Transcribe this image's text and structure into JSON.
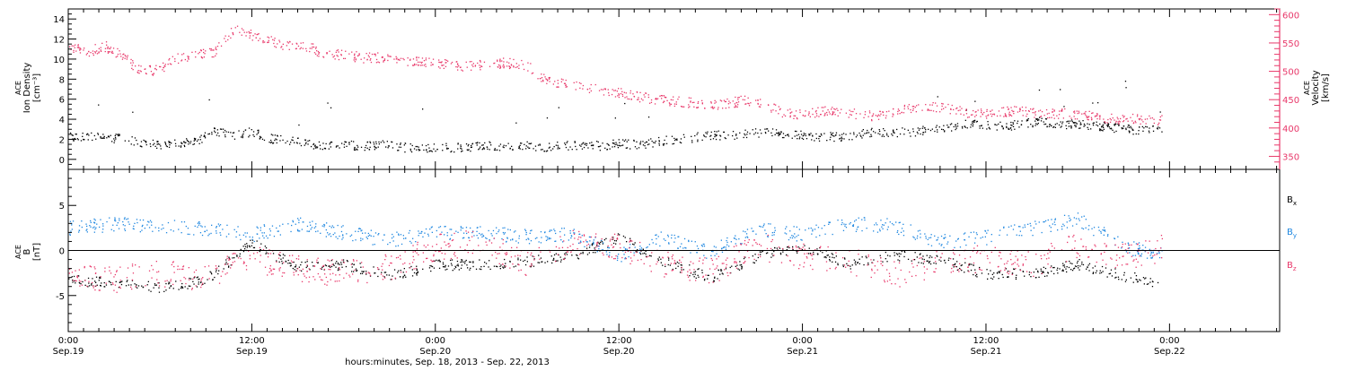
{
  "colors": {
    "black": "#000000",
    "pink": "#e8386a",
    "blue": "#1e87e0"
  },
  "chart_data": [
    {
      "type": "scatter",
      "panel": "top",
      "ylabel_left": [
        "ACE",
        "Ion Density",
        "[cm⁻³]"
      ],
      "ylabel_right": [
        "ACE",
        "Velocity",
        "[km/s]"
      ],
      "y_left_lim": [
        -1,
        15
      ],
      "y_left_ticks": [
        0,
        2,
        4,
        6,
        8,
        10,
        12,
        14
      ],
      "y_right_lim": [
        327,
        610
      ],
      "y_right_ticks": [
        350,
        400,
        450,
        500,
        550,
        600
      ],
      "series": [
        {
          "name": "",
          "axis": "left",
          "color": "#000000",
          "x_days": [
            0,
            0.1,
            0.2,
            0.3,
            0.4,
            0.5,
            0.6,
            0.7,
            0.8,
            0.9,
            1.0,
            1.1,
            1.2,
            1.3,
            1.4,
            1.5,
            1.6,
            1.7,
            1.8,
            1.9,
            2.0,
            2.1,
            2.2,
            2.3,
            2.4,
            2.5,
            2.6,
            2.7,
            2.8,
            2.9,
            3.0,
            3.1,
            3.2,
            3.3,
            3.4,
            3.5,
            3.6,
            3.7,
            3.8,
            3.9,
            4.0,
            4.1,
            4.2,
            4.3,
            4.4,
            4.5,
            4.6,
            4.7,
            4.8,
            4.9,
            5.0,
            5.1,
            5.2,
            5.3,
            5.4,
            5.5,
            5.6,
            5.7,
            5.8,
            5.9,
            5.96
          ],
          "values": [
            2.3,
            2.4,
            2.1,
            2.2,
            1.7,
            1.5,
            1.6,
            1.8,
            2.9,
            2.4,
            2.8,
            2.1,
            1.9,
            1.6,
            1.4,
            1.6,
            1.3,
            1.5,
            1.3,
            1.1,
            1.3,
            1.2,
            1.3,
            1.4,
            1.2,
            1.4,
            1.2,
            1.4,
            1.5,
            1.4,
            1.6,
            1.5,
            1.8,
            2.0,
            2.2,
            2.5,
            2.4,
            2.6,
            2.8,
            2.6,
            2.5,
            2.3,
            2.3,
            2.5,
            2.8,
            2.7,
            2.8,
            3.0,
            3.2,
            3.6,
            3.4,
            3.3,
            3.6,
            3.8,
            3.5,
            3.6,
            3.4,
            3.2,
            3.0,
            3.1,
            3.1
          ],
          "noise": 0.45
        },
        {
          "name": "",
          "axis": "right",
          "color": "#e8386a",
          "x_days": [
            0,
            0.1,
            0.2,
            0.3,
            0.4,
            0.5,
            0.6,
            0.7,
            0.8,
            0.9,
            1.0,
            1.1,
            1.2,
            1.3,
            1.4,
            1.5,
            1.6,
            1.7,
            1.8,
            1.9,
            2.0,
            2.1,
            2.2,
            2.3,
            2.4,
            2.5,
            2.6,
            2.7,
            2.8,
            2.9,
            3.0,
            3.1,
            3.2,
            3.3,
            3.4,
            3.5,
            3.6,
            3.7,
            3.8,
            3.9,
            4.0,
            4.1,
            4.2,
            4.3,
            4.4,
            4.5,
            4.6,
            4.7,
            4.8,
            4.9,
            5.0,
            5.1,
            5.2,
            5.3,
            5.4,
            5.5,
            5.6,
            5.7,
            5.8,
            5.9,
            5.96
          ],
          "values": [
            545,
            535,
            545,
            525,
            500,
            505,
            525,
            530,
            535,
            575,
            565,
            555,
            545,
            545,
            530,
            530,
            525,
            525,
            520,
            520,
            515,
            510,
            510,
            515,
            515,
            510,
            485,
            478,
            472,
            468,
            462,
            456,
            450,
            448,
            445,
            440,
            445,
            450,
            440,
            428,
            425,
            430,
            428,
            425,
            420,
            430,
            438,
            440,
            433,
            428,
            425,
            430,
            430,
            426,
            426,
            425,
            423,
            415,
            417,
            415,
            415
          ],
          "noise": 9
        }
      ]
    },
    {
      "type": "scatter",
      "panel": "bottom",
      "ylabel_left": [
        "ACE",
        "B",
        "[nT]"
      ],
      "y_lim": [
        -9,
        9
      ],
      "y_ticks": [
        -5,
        0,
        5
      ],
      "series": [
        {
          "name": "Bx",
          "color": "#000000",
          "x_days": [
            0,
            0.25,
            0.5,
            0.75,
            1.0,
            1.25,
            1.5,
            1.75,
            2.0,
            2.25,
            2.5,
            2.75,
            3.0,
            3.25,
            3.5,
            3.75,
            4.0,
            4.25,
            4.5,
            4.75,
            5.0,
            5.25,
            5.5,
            5.75,
            5.96
          ],
          "values": [
            -3.2,
            -3.6,
            -4.1,
            -3.2,
            0.8,
            -1.8,
            -1.5,
            -2.8,
            -1.6,
            -1.5,
            -1.2,
            -0.6,
            1.5,
            -1.2,
            -3.0,
            -0.6,
            0.5,
            -1.5,
            -0.5,
            -1.0,
            -2.6,
            -2.5,
            -1.5,
            -2.8,
            -3.6
          ],
          "noise": 0.6
        },
        {
          "name": "By",
          "color": "#1e87e0",
          "x_days": [
            0,
            0.25,
            0.5,
            0.75,
            1.0,
            1.25,
            1.5,
            1.75,
            2.0,
            2.25,
            2.5,
            2.75,
            3.0,
            3.25,
            3.5,
            3.75,
            4.0,
            4.25,
            4.5,
            4.75,
            5.0,
            5.25,
            5.5,
            5.75,
            5.96
          ],
          "values": [
            2.5,
            3.0,
            2.8,
            2.5,
            1.8,
            3.0,
            2.0,
            1.2,
            2.0,
            2.0,
            1.6,
            1.8,
            -0.5,
            1.5,
            -0.2,
            2.5,
            1.8,
            3.0,
            2.8,
            1.0,
            1.5,
            2.5,
            3.5,
            0.5,
            -0.5
          ],
          "noise": 0.8
        },
        {
          "name": "Bz",
          "color": "#e8386a",
          "x_days": [
            0,
            0.25,
            0.5,
            0.75,
            1.0,
            1.25,
            1.5,
            1.75,
            2.0,
            2.25,
            2.5,
            2.75,
            3.0,
            3.25,
            3.5,
            3.75,
            4.0,
            4.25,
            4.5,
            4.75,
            5.0,
            5.25,
            5.5,
            5.75,
            5.96
          ],
          "values": [
            -2.8,
            -3.2,
            -2.5,
            -3.0,
            -0.8,
            -2.0,
            -2.5,
            -1.8,
            0.5,
            1.0,
            -1.5,
            0.8,
            0.5,
            -1.5,
            -2.3,
            0.6,
            -0.6,
            -1.0,
            -2.6,
            -1.3,
            -0.8,
            -1.5,
            0.8,
            -0.6,
            0.3
          ],
          "noise": 1.5
        }
      ],
      "legend": [
        {
          "label": "B",
          "sub": "x",
          "color": "#000000"
        },
        {
          "label": "B",
          "sub": "y",
          "color": "#1e87e0"
        },
        {
          "label": "B",
          "sub": "z",
          "color": "#e8386a"
        }
      ]
    }
  ],
  "x_axis": {
    "domain_days": [
      0,
      6.6
    ],
    "ticks": [
      {
        "time": "0:00",
        "date": "Sep.19"
      },
      {
        "time": "12:00",
        "date": "Sep.19"
      },
      {
        "time": "0:00",
        "date": "Sep.20"
      },
      {
        "time": "12:00",
        "date": "Sep.20"
      },
      {
        "time": "0:00",
        "date": "Sep.21"
      },
      {
        "time": "12:00",
        "date": "Sep.21"
      },
      {
        "time": "0:00",
        "date": "Sep.22"
      }
    ],
    "tick_days": [
      0,
      1,
      2,
      3,
      4,
      5,
      6
    ],
    "label": "hours:minutes, Sep. 18, 2013 - Sep. 22, 2013"
  }
}
